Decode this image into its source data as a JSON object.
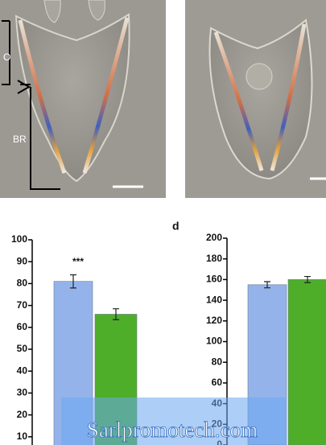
{
  "image_labels": {
    "top": "O",
    "bottom": "BR"
  },
  "watermark": "Sarlpromotech.com",
  "chart_data": [
    {
      "type": "bar",
      "categories": [
        null,
        null
      ],
      "values": [
        81,
        66
      ],
      "errors": [
        3,
        2.5
      ],
      "colors": [
        "#94b3ea",
        "#4eae2a"
      ],
      "annotation": "***",
      "ylim": [
        0,
        100
      ],
      "yticks": [
        10,
        20,
        30,
        40,
        50,
        60,
        70,
        80,
        90,
        100
      ]
    },
    {
      "type": "bar",
      "panel_label": "d",
      "categories": [
        null,
        null
      ],
      "values": [
        155,
        160
      ],
      "errors": [
        3,
        3
      ],
      "colors": [
        "#94b3ea",
        "#4eae2a"
      ],
      "ylim": [
        0,
        200
      ],
      "yticks": [
        0,
        20,
        40,
        60,
        80,
        100,
        120,
        140,
        160,
        180,
        200
      ]
    }
  ]
}
